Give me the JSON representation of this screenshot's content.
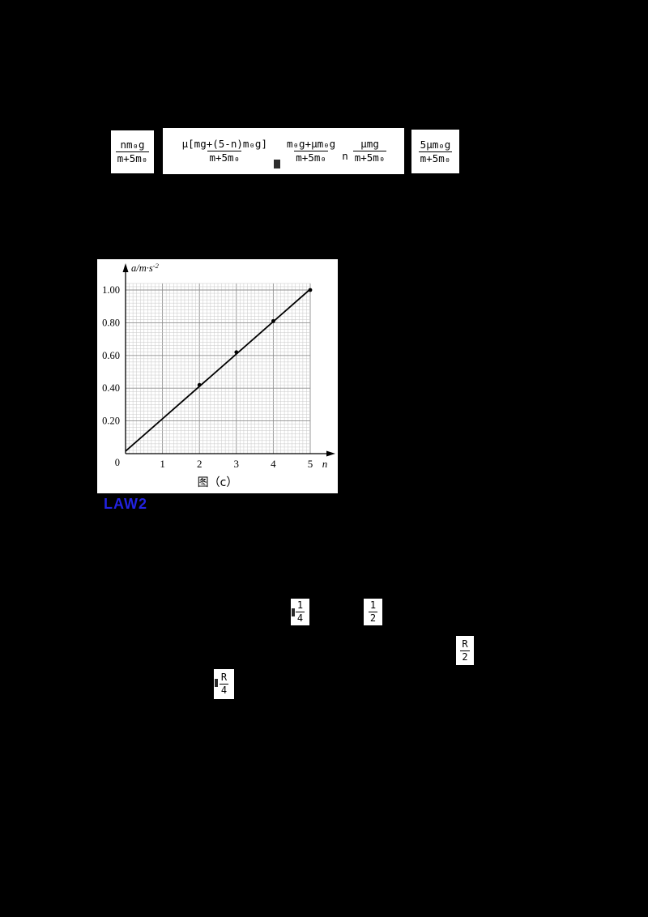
{
  "page": {
    "background": "#000000"
  },
  "labels": {
    "law": "LAW2",
    "law_color": "#2222e0"
  },
  "formulas": {
    "f1": {
      "num": "nm₀g",
      "den": "m+5m₀"
    },
    "f2a": {
      "num": "μ[mg+(5-n)m₀g]",
      "den": "m+5m₀"
    },
    "f2b": {
      "num": "m₀g+μm₀g",
      "den": "m+5m₀"
    },
    "f2_sep": "n",
    "f2c": {
      "num": "μmg",
      "den": "m+5m₀"
    },
    "f3": {
      "num": "5μm₀g",
      "den": "m+5m₀"
    }
  },
  "fractions": {
    "quarter": {
      "num": "1",
      "den": "4"
    },
    "half": {
      "num": "1",
      "den": "2"
    },
    "r2": {
      "num": "R",
      "den": "2"
    },
    "r4": {
      "num": "R",
      "den": "4"
    }
  },
  "chart_data": {
    "type": "scatter-line",
    "title": "",
    "xlabel": "n",
    "ylabel_main": "a/m·s",
    "ylabel_sup": "-2",
    "x_ticks": [
      1,
      2,
      3,
      4,
      5
    ],
    "x_tick_labels": [
      "1",
      "2",
      "3",
      "4",
      "5"
    ],
    "y_ticks": [
      {
        "label": "1.00",
        "value": 1.0
      },
      {
        "label": "0.80",
        "value": 0.8
      },
      {
        "label": "0.60",
        "value": 0.6
      },
      {
        "label": "0.40",
        "value": 0.4
      },
      {
        "label": "0.20",
        "value": 0.2
      }
    ],
    "origin_label": "0",
    "xlim": [
      0,
      5.4
    ],
    "ylim": [
      0,
      1.12
    ],
    "grid": {
      "minor_x": 0.1,
      "minor_y": 0.02,
      "major_y": 0.2,
      "xmax": 5,
      "ymax": 1.04
    },
    "points": [
      [
        2,
        0.42
      ],
      [
        3,
        0.62
      ],
      [
        4,
        0.81
      ],
      [
        5,
        1.0
      ]
    ],
    "line": [
      [
        0,
        0.015
      ],
      [
        5,
        1.005
      ]
    ],
    "legend": null,
    "caption": "图（c）"
  }
}
